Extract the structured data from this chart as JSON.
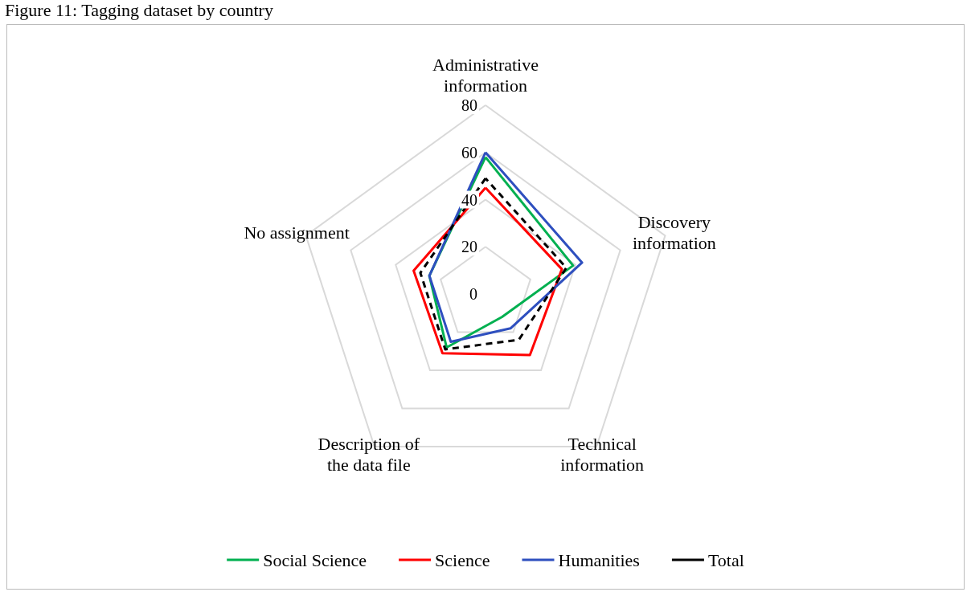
{
  "chart_data": {
    "type": "radar",
    "title": "Figure 11: Tagging dataset by country",
    "categories": [
      "Administrative information",
      "Discovery information",
      "Technical information",
      "Description of the data file",
      "No assignment"
    ],
    "series": [
      {
        "name": "Social Science",
        "color": "#00b050",
        "values": [
          58,
          39,
          12,
          28,
          25
        ]
      },
      {
        "name": "Science",
        "color": "#ff0000",
        "values": [
          45,
          34,
          32,
          31,
          32
        ]
      },
      {
        "name": "Humanities",
        "color": "#2e4fbf",
        "values": [
          60,
          43,
          18,
          25,
          25
        ]
      },
      {
        "name": "Total",
        "color": "#000000",
        "values": [
          49,
          36,
          24,
          29,
          29
        ],
        "line_style": "dashed"
      }
    ],
    "ylim": [
      0,
      80
    ],
    "yticks": [
      0,
      20,
      40,
      60,
      80
    ],
    "grid": true,
    "legend": "bottom",
    "marker": "none"
  }
}
